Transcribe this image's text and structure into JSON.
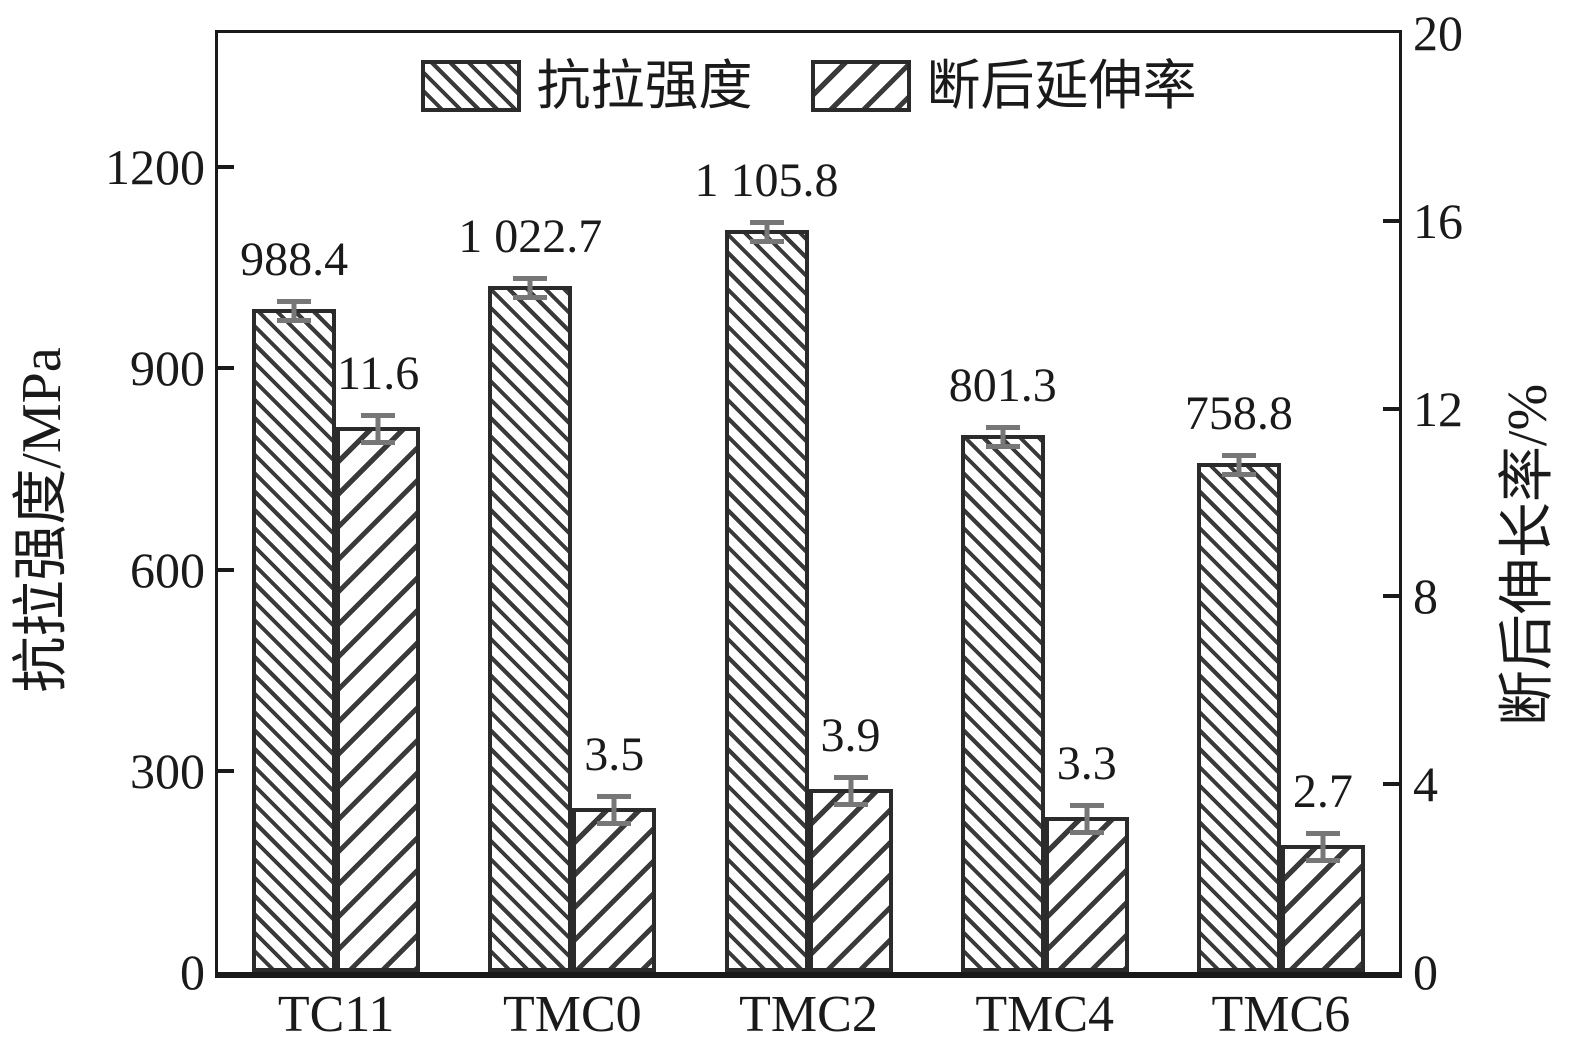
{
  "figure": {
    "background": "#ffffff",
    "ink_color": "#1a1a1a",
    "bar_edge_color": "#2b2b2b",
    "error_bar_color": "#777777"
  },
  "legend": {
    "position": "top-center",
    "items": [
      {
        "label": "抗拉强度",
        "hatch": "backslash-dense"
      },
      {
        "label": "断后延伸率",
        "hatch": "forward-slash"
      }
    ]
  },
  "chart_data": {
    "type": "bar",
    "categories": [
      "TC11",
      "TMC0",
      "TMC2",
      "TMC4",
      "TMC6"
    ],
    "series": [
      {
        "name": "抗拉强度",
        "axis": "left",
        "unit": "MPa",
        "hatch": "backslash-dense",
        "values": [
          988.4,
          1022.7,
          1105.8,
          801.3,
          758.8
        ],
        "value_labels": [
          "988.4",
          "1 022.7",
          "1 105.8",
          "801.3",
          "758.8"
        ]
      },
      {
        "name": "断后延伸率",
        "axis": "right",
        "unit": "%",
        "hatch": "forward-slash",
        "values": [
          11.6,
          3.5,
          3.9,
          3.3,
          2.7
        ],
        "value_labels": [
          "11.6",
          "3.5",
          "3.9",
          "3.3",
          "2.7"
        ]
      }
    ],
    "left_axis": {
      "label": "抗拉强度/MPa",
      "tick_values": [
        0,
        300,
        600,
        900,
        1200
      ],
      "tick_labels": [
        "0",
        "300",
        "600",
        "900",
        "1200"
      ],
      "range": [
        0,
        1400
      ]
    },
    "right_axis": {
      "label": "断后伸长率/%",
      "tick_values": [
        0,
        4,
        8,
        12,
        16,
        20
      ],
      "tick_labels": [
        "0",
        "4",
        "8",
        "12",
        "16",
        "20"
      ],
      "range": [
        0,
        20
      ]
    },
    "grid": false,
    "error_bars": true,
    "legend_position": "top-center"
  }
}
